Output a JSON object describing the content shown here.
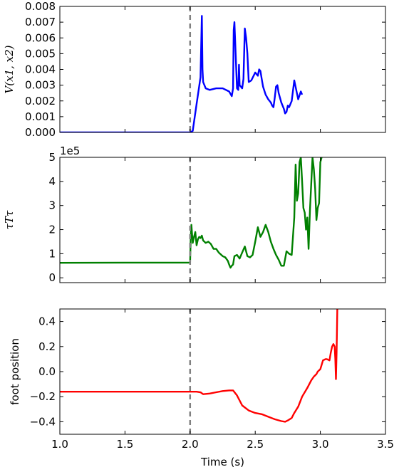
{
  "chart_data": [
    {
      "type": "line",
      "ylabel": "V(x1, x2)",
      "ylim": [
        0,
        0.008
      ],
      "xlim": [
        1.0,
        3.5
      ],
      "yticks": [
        0.0,
        0.001,
        0.002,
        0.003,
        0.004,
        0.005,
        0.006,
        0.007,
        0.008
      ],
      "ytick_labels": [
        "0.000",
        "0.001",
        "0.002",
        "0.003",
        "0.004",
        "0.005",
        "0.006",
        "0.007",
        "0.008"
      ],
      "vline_x": 2.0,
      "series": [
        {
          "color": "#0000ff",
          "x": [
            1.0,
            1.5,
            1.99,
            2.0,
            2.02,
            2.05,
            2.08,
            2.09,
            2.095,
            2.1,
            2.12,
            2.15,
            2.2,
            2.25,
            2.3,
            2.32,
            2.33,
            2.335,
            2.34,
            2.36,
            2.37,
            2.375,
            2.38,
            2.39,
            2.4,
            2.41,
            2.42,
            2.43,
            2.44,
            2.45,
            2.47,
            2.5,
            2.52,
            2.53,
            2.54,
            2.55,
            2.56,
            2.58,
            2.6,
            2.62,
            2.63,
            2.64,
            2.65,
            2.66,
            2.67,
            2.68,
            2.7,
            2.72,
            2.73,
            2.74,
            2.75,
            2.76,
            2.78,
            2.8,
            2.83,
            2.85,
            2.86
          ],
          "y": [
            0.0,
            0.0,
            0.0,
            0.0,
            0.0001,
            0.0018,
            0.0035,
            0.0074,
            0.004,
            0.0032,
            0.0028,
            0.0027,
            0.0028,
            0.0028,
            0.0026,
            0.0023,
            0.0028,
            0.0065,
            0.007,
            0.0028,
            0.0027,
            0.0043,
            0.003,
            0.0029,
            0.0028,
            0.0034,
            0.0066,
            0.006,
            0.005,
            0.0032,
            0.0033,
            0.0038,
            0.0036,
            0.004,
            0.0039,
            0.0034,
            0.0029,
            0.0024,
            0.0021,
            0.0019,
            0.0017,
            0.0016,
            0.0022,
            0.0029,
            0.003,
            0.0025,
            0.0019,
            0.0015,
            0.0012,
            0.0013,
            0.0017,
            0.0016,
            0.002,
            0.0033,
            0.0021,
            0.0026,
            0.0024
          ]
        }
      ]
    },
    {
      "type": "line",
      "ylabel": "τTτ",
      "scale_label": "1e5",
      "ylim": [
        -0.2,
        5
      ],
      "xlim": [
        1.0,
        3.5
      ],
      "yticks": [
        0,
        1,
        2,
        3,
        4,
        5
      ],
      "ytick_labels": [
        "0",
        "1",
        "2",
        "3",
        "4",
        "5"
      ],
      "vline_x": 2.0,
      "series": [
        {
          "color": "#008000",
          "x": [
            1.0,
            1.5,
            1.99,
            2.0,
            2.005,
            2.01,
            2.02,
            2.03,
            2.04,
            2.05,
            2.06,
            2.07,
            2.08,
            2.09,
            2.1,
            2.12,
            2.14,
            2.16,
            2.18,
            2.2,
            2.22,
            2.25,
            2.27,
            2.29,
            2.3,
            2.31,
            2.32,
            2.33,
            2.34,
            2.36,
            2.38,
            2.4,
            2.42,
            2.44,
            2.46,
            2.48,
            2.5,
            2.52,
            2.54,
            2.56,
            2.58,
            2.6,
            2.62,
            2.64,
            2.66,
            2.68,
            2.7,
            2.72,
            2.74,
            2.76,
            2.78,
            2.8,
            2.81,
            2.82,
            2.83,
            2.84,
            2.85,
            2.86,
            2.87,
            2.88,
            2.89,
            2.9,
            2.91,
            2.92,
            2.93,
            2.94,
            2.95,
            2.96,
            2.97,
            2.98,
            2.99,
            3.0,
            3.01
          ],
          "y": [
            0.62,
            0.63,
            0.63,
            0.63,
            1.7,
            2.2,
            1.45,
            1.7,
            1.9,
            1.35,
            1.6,
            1.7,
            1.65,
            1.75,
            1.55,
            1.45,
            1.5,
            1.4,
            1.2,
            1.2,
            1.05,
            0.9,
            0.85,
            0.7,
            0.55,
            0.42,
            0.5,
            0.55,
            0.9,
            0.95,
            0.8,
            1.05,
            1.3,
            0.9,
            0.85,
            0.95,
            1.5,
            2.1,
            1.7,
            1.9,
            2.2,
            1.9,
            1.5,
            1.2,
            0.95,
            0.75,
            0.5,
            0.5,
            1.1,
            1.0,
            0.95,
            2.5,
            4.7,
            3.2,
            3.5,
            4.8,
            5.0,
            4.0,
            2.9,
            2.7,
            2.0,
            2.5,
            1.2,
            2.8,
            3.9,
            5.0,
            4.5,
            3.7,
            2.4,
            2.9,
            3.1,
            4.8,
            5.0
          ]
        }
      ]
    },
    {
      "type": "line",
      "ylabel": "foot position",
      "xlabel": "Time (s)",
      "ylim": [
        -0.5,
        0.5
      ],
      "xlim": [
        1.0,
        3.5
      ],
      "yticks": [
        -0.4,
        -0.2,
        0.0,
        0.2,
        0.4
      ],
      "ytick_labels": [
        "−0.4",
        "−0.2",
        "0.0",
        "0.2",
        "0.4"
      ],
      "xticks": [
        1.0,
        1.5,
        2.0,
        2.5,
        3.0,
        3.5
      ],
      "xtick_labels": [
        "1.0",
        "1.5",
        "2.0",
        "2.5",
        "3.0",
        "3.5"
      ],
      "vline_x": 2.0,
      "series": [
        {
          "color": "#ff0000",
          "x": [
            1.0,
            1.5,
            1.9,
            2.0,
            2.05,
            2.08,
            2.1,
            2.15,
            2.2,
            2.25,
            2.3,
            2.33,
            2.36,
            2.4,
            2.45,
            2.5,
            2.55,
            2.6,
            2.65,
            2.7,
            2.73,
            2.75,
            2.78,
            2.8,
            2.83,
            2.86,
            2.9,
            2.93,
            2.95,
            2.97,
            2.98,
            3.0,
            3.02,
            3.04,
            3.05,
            3.07,
            3.08,
            3.09,
            3.1,
            3.11,
            3.115,
            3.12,
            3.125,
            3.13
          ],
          "y": [
            -0.16,
            -0.16,
            -0.16,
            -0.16,
            -0.16,
            -0.165,
            -0.18,
            -0.175,
            -0.165,
            -0.155,
            -0.15,
            -0.15,
            -0.19,
            -0.27,
            -0.31,
            -0.33,
            -0.34,
            -0.36,
            -0.38,
            -0.395,
            -0.4,
            -0.39,
            -0.37,
            -0.33,
            -0.28,
            -0.2,
            -0.13,
            -0.07,
            -0.04,
            -0.02,
            0.0,
            0.02,
            0.09,
            0.1,
            0.1,
            0.09,
            0.15,
            0.2,
            0.22,
            0.2,
            0.1,
            -0.06,
            0.15,
            0.5
          ]
        }
      ]
    }
  ]
}
